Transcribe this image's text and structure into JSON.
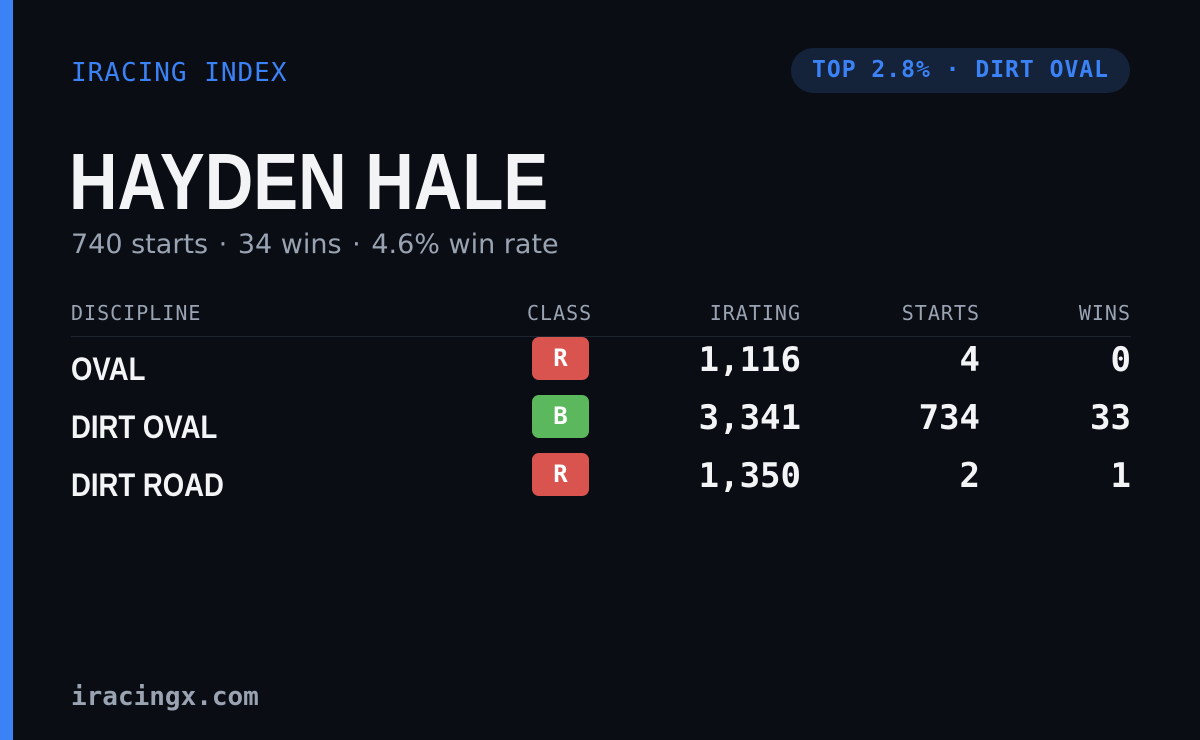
{
  "brand": "IRACING INDEX",
  "badge_pill": "TOP 2.8% · DIRT OVAL",
  "driver": {
    "name": "HAYDEN HALE",
    "starts_text": "740 starts",
    "wins_text": "34 wins",
    "win_rate_text": "4.6% win rate",
    "separator": "·"
  },
  "table": {
    "headers": {
      "discipline": "DISCIPLINE",
      "class": "CLASS",
      "irating": "IRATING",
      "starts": "STARTS",
      "wins": "WINS"
    },
    "rows": [
      {
        "discipline": "OVAL",
        "class": "R",
        "class_color": "#d9534f",
        "irating": "1,116",
        "starts": "4",
        "wins": "0"
      },
      {
        "discipline": "DIRT OVAL",
        "class": "B",
        "class_color": "#5cb85c",
        "irating": "3,341",
        "starts": "734",
        "wins": "33"
      },
      {
        "discipline": "DIRT ROAD",
        "class": "R",
        "class_color": "#d9534f",
        "irating": "1,350",
        "starts": "2",
        "wins": "1"
      }
    ]
  },
  "footer": "iracingx.com",
  "colors": {
    "accent": "#3b82f6",
    "background": "#0a0d14",
    "pill_background": "#14223a",
    "text_primary": "#f3f4f6",
    "text_muted": "#9aa3b2"
  }
}
